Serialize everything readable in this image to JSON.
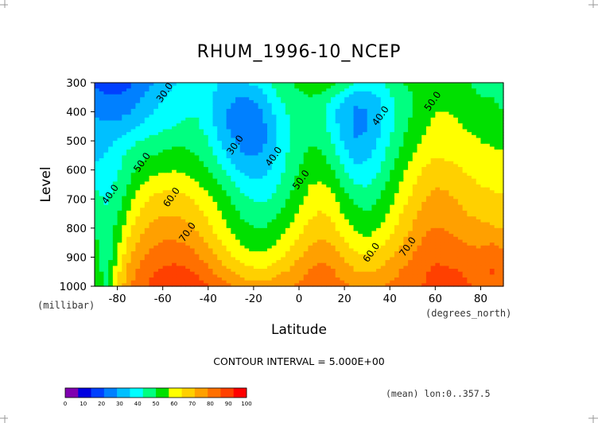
{
  "chart_data": {
    "type": "heatmap",
    "title": "RHUM_1996-10_NCEP",
    "xlabel": "Latitude",
    "ylabel": "Level",
    "x_unit": "(degrees_north)",
    "y_unit": "(millibar)",
    "xlim": [
      -90,
      90
    ],
    "ylim": [
      1000,
      300
    ],
    "x_ticks": [
      "-80",
      "-60",
      "-40",
      "-20",
      "0",
      "20",
      "40",
      "60",
      "80"
    ],
    "y_ticks": [
      "300",
      "400",
      "500",
      "600",
      "700",
      "800",
      "900",
      "1000"
    ],
    "footer_text": "CONTOUR INTERVAL = 5.000E+00",
    "mean_text": "(mean) lon:0..357.5",
    "colorbar": {
      "ticks": [
        "0",
        "10",
        "20",
        "30",
        "40",
        "50",
        "60",
        "70",
        "80",
        "90",
        "100"
      ],
      "colors": [
        "#8000b0",
        "#0000e0",
        "#0040ff",
        "#0080ff",
        "#00c0ff",
        "#00ffff",
        "#00ff80",
        "#00e000",
        "#ffff00",
        "#ffd000",
        "#ffa000",
        "#ff7000",
        "#ff4000",
        "#ff0000"
      ]
    },
    "contour_labels": [
      {
        "text": "30.0",
        "lat": -58,
        "level": 340
      },
      {
        "text": "30.0",
        "lat": -27,
        "level": 520
      },
      {
        "text": "40.0",
        "lat": 37,
        "level": 420
      },
      {
        "text": "40.0",
        "lat": -10,
        "level": 560
      },
      {
        "text": "40.0",
        "lat": -82,
        "level": 690
      },
      {
        "text": "50.0",
        "lat": 60,
        "level": 370
      },
      {
        "text": "50.0",
        "lat": 2,
        "level": 640
      },
      {
        "text": "50.0",
        "lat": -68,
        "level": 580
      },
      {
        "text": "60.0",
        "lat": -55,
        "level": 700
      },
      {
        "text": "60.0",
        "lat": 33,
        "level": 890
      },
      {
        "text": "70.0",
        "lat": -48,
        "level": 820
      },
      {
        "text": "70.0",
        "lat": 49,
        "level": 870
      }
    ],
    "field": {
      "lats": [
        -90,
        -85,
        -80,
        -75,
        -70,
        -65,
        -60,
        -55,
        -50,
        -45,
        -40,
        -35,
        -30,
        -25,
        -20,
        -15,
        -10,
        -5,
        0,
        5,
        10,
        15,
        20,
        25,
        30,
        35,
        40,
        45,
        50,
        55,
        60,
        65,
        70,
        75,
        80,
        85,
        90
      ],
      "levels": [
        300,
        350,
        400,
        450,
        500,
        550,
        600,
        650,
        700,
        750,
        800,
        850,
        900,
        950,
        1000
      ],
      "values": [
        [
          20,
          18,
          18,
          20,
          24,
          28,
          32,
          35,
          37,
          38,
          38,
          36,
          34,
          35,
          37,
          40,
          45,
          48,
          52,
          56,
          57,
          53,
          48,
          42,
          40,
          42,
          45,
          50,
          52,
          55,
          56,
          54,
          52,
          50,
          48,
          46,
          44
        ],
        [
          24,
          22,
          22,
          24,
          28,
          32,
          35,
          38,
          40,
          40,
          38,
          33,
          30,
          28,
          30,
          34,
          42,
          46,
          48,
          50,
          48,
          42,
          36,
          32,
          32,
          36,
          42,
          46,
          50,
          54,
          56,
          55,
          54,
          52,
          50,
          50,
          48
        ],
        [
          28,
          26,
          26,
          28,
          32,
          35,
          38,
          40,
          42,
          42,
          38,
          32,
          27,
          24,
          25,
          30,
          38,
          43,
          46,
          47,
          44,
          38,
          31,
          27,
          28,
          33,
          40,
          45,
          50,
          54,
          57,
          57,
          56,
          54,
          52,
          52,
          50
        ],
        [
          30,
          30,
          30,
          33,
          36,
          39,
          41,
          43,
          44,
          44,
          40,
          33,
          27,
          24,
          24,
          28,
          35,
          42,
          45,
          47,
          45,
          39,
          31,
          27,
          28,
          34,
          41,
          47,
          52,
          56,
          59,
          59,
          58,
          56,
          55,
          54,
          52
        ],
        [
          32,
          34,
          36,
          40,
          43,
          45,
          47,
          48,
          48,
          47,
          43,
          36,
          30,
          26,
          25,
          28,
          35,
          42,
          46,
          49,
          48,
          42,
          34,
          29,
          30,
          36,
          43,
          49,
          54,
          58,
          61,
          61,
          60,
          59,
          57,
          56,
          55
        ],
        [
          34,
          36,
          40,
          45,
          48,
          50,
          51,
          52,
          52,
          50,
          46,
          40,
          34,
          29,
          28,
          30,
          36,
          43,
          48,
          52,
          51,
          46,
          38,
          33,
          34,
          39,
          46,
          52,
          57,
          61,
          64,
          63,
          62,
          61,
          60,
          59,
          58
        ],
        [
          38,
          38,
          42,
          47,
          52,
          55,
          56,
          57,
          56,
          54,
          50,
          45,
          39,
          34,
          32,
          34,
          39,
          45,
          50,
          54,
          54,
          50,
          43,
          38,
          38,
          42,
          49,
          55,
          60,
          65,
          68,
          67,
          65,
          63,
          62,
          61,
          60
        ],
        [
          42,
          40,
          44,
          50,
          56,
          60,
          62,
          62,
          61,
          58,
          54,
          50,
          45,
          40,
          37,
          38,
          42,
          47,
          52,
          57,
          58,
          55,
          48,
          43,
          42,
          46,
          52,
          58,
          63,
          68,
          71,
          70,
          68,
          66,
          64,
          63,
          62
        ],
        [
          45,
          42,
          46,
          54,
          61,
          65,
          67,
          67,
          66,
          63,
          59,
          55,
          50,
          45,
          42,
          42,
          45,
          50,
          55,
          60,
          62,
          59,
          53,
          48,
          46,
          50,
          55,
          61,
          66,
          71,
          74,
          73,
          71,
          69,
          67,
          66,
          65
        ],
        [
          48,
          44,
          49,
          58,
          65,
          69,
          71,
          71,
          70,
          67,
          63,
          58,
          53,
          49,
          46,
          46,
          49,
          53,
          58,
          63,
          65,
          62,
          56,
          52,
          50,
          53,
          58,
          64,
          69,
          74,
          76,
          75,
          73,
          71,
          70,
          69,
          68
        ],
        [
          50,
          45,
          52,
          62,
          69,
          73,
          75,
          75,
          74,
          71,
          66,
          61,
          56,
          52,
          50,
          50,
          53,
          57,
          62,
          67,
          69,
          66,
          60,
          56,
          54,
          57,
          62,
          67,
          72,
          77,
          79,
          78,
          76,
          74,
          73,
          72,
          71
        ],
        [
          52,
          44,
          55,
          66,
          73,
          77,
          79,
          79,
          78,
          75,
          70,
          65,
          60,
          56,
          54,
          54,
          57,
          61,
          66,
          71,
          73,
          70,
          65,
          61,
          59,
          62,
          66,
          71,
          75,
          80,
          82,
          81,
          80,
          78,
          77,
          78,
          76
        ],
        [
          54,
          44,
          58,
          70,
          77,
          81,
          83,
          84,
          83,
          80,
          75,
          70,
          65,
          61,
          59,
          59,
          62,
          66,
          71,
          75,
          77,
          75,
          70,
          66,
          65,
          67,
          71,
          75,
          79,
          83,
          85,
          84,
          83,
          82,
          81,
          85,
          80
        ],
        [
          56,
          46,
          62,
          74,
          81,
          85,
          87,
          88,
          87,
          85,
          81,
          76,
          72,
          68,
          66,
          66,
          69,
          72,
          76,
          79,
          81,
          79,
          75,
          72,
          71,
          72,
          75,
          79,
          82,
          85,
          87,
          87,
          86,
          85,
          84,
          86,
          83
        ],
        [
          58,
          48,
          65,
          77,
          84,
          87,
          88,
          89,
          89,
          88,
          86,
          82,
          79,
          76,
          74,
          74,
          76,
          78,
          80,
          82,
          83,
          82,
          80,
          78,
          77,
          78,
          80,
          82,
          84,
          86,
          88,
          88,
          87,
          86,
          85,
          84,
          83
        ]
      ]
    }
  }
}
